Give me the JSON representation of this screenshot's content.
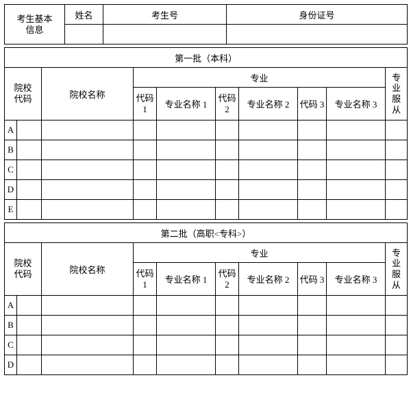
{
  "basic": {
    "group_label": "考生基本\n信息",
    "name_label": "姓名",
    "exam_no_label": "考生号",
    "id_no_label": "身份证号",
    "name_value": "",
    "exam_no_value": "",
    "id_no_value": ""
  },
  "batch1": {
    "title": "第一批（本科）",
    "school_code_label": "院校\n代码",
    "school_name_label": "院校名称",
    "major_group_label": "专业",
    "obey_label": "专\n业\n服\n从",
    "code1": "代码\n1",
    "name1": "专业名称 1",
    "code2": "代码\n2",
    "name2": "专业名称 2",
    "code3": "代码 3",
    "name3": "专业名称 3",
    "rows": [
      "A",
      "B",
      "C",
      "D",
      "E"
    ]
  },
  "batch2": {
    "title": "第二批（高职<专科>）",
    "school_code_label": "院校\n代码",
    "school_name_label": "院校名称",
    "major_group_label": "专业",
    "obey_label": "专\n业\n服\n从",
    "code1": "代码\n1",
    "name1": "专业名称 1",
    "code2": "代码\n2",
    "name2": "专业名称 2",
    "code3": "代码 3",
    "name3": "专业名称 3",
    "rows": [
      "A",
      "B",
      "C",
      "D"
    ]
  },
  "style": {
    "border_color": "#000000",
    "background": "#ffffff",
    "font_family": "SimSun",
    "font_size_pt": 10
  }
}
